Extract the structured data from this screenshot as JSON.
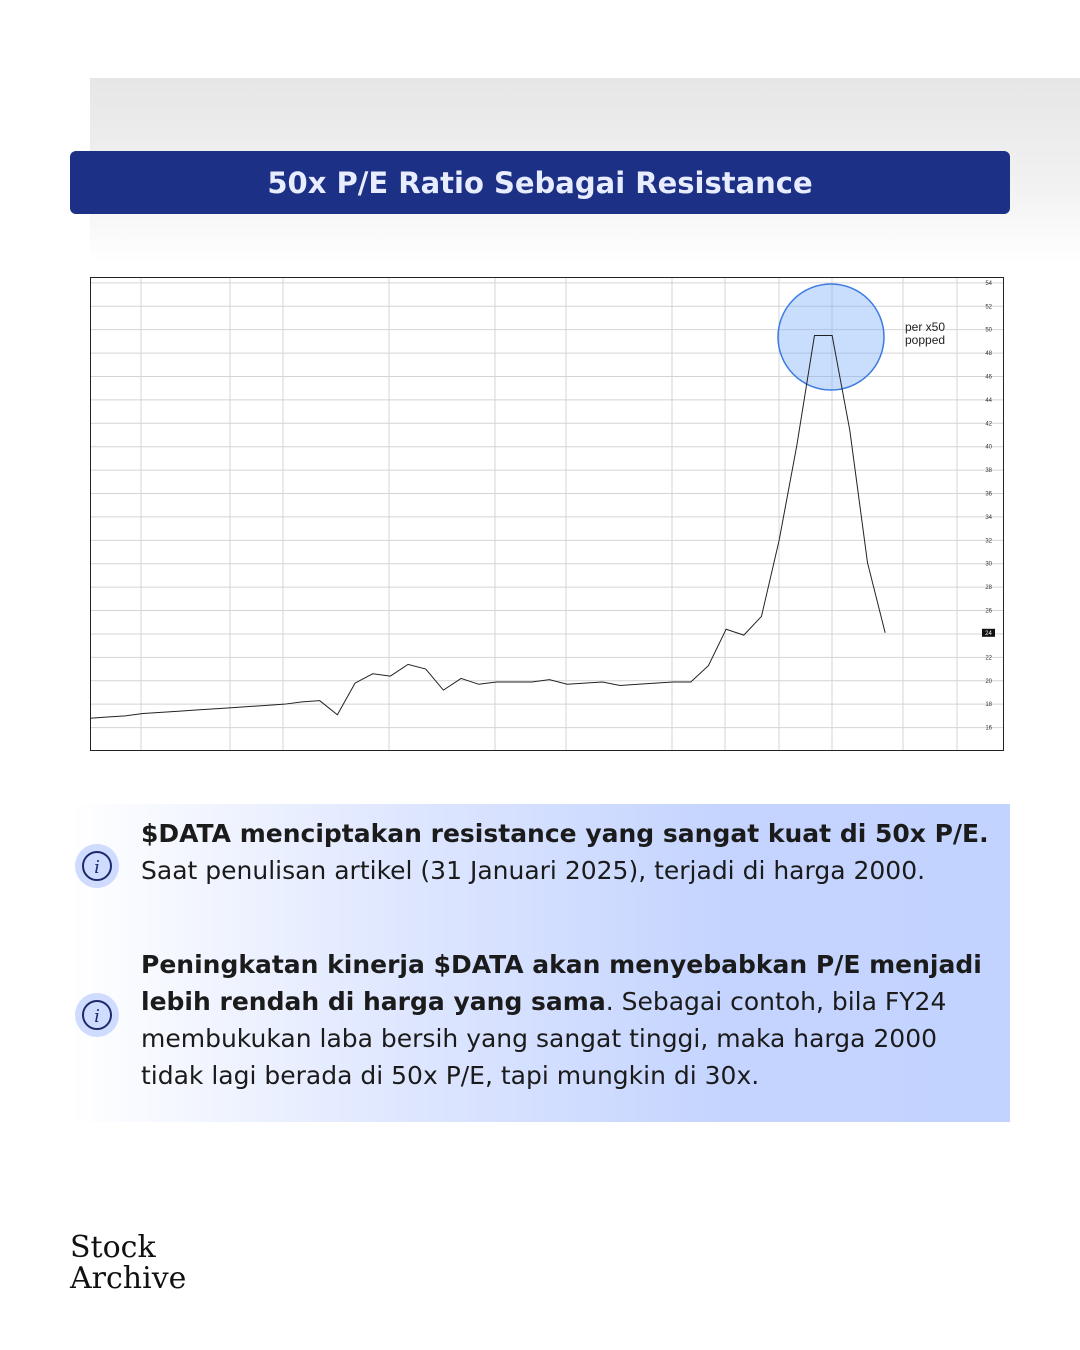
{
  "header": {
    "title": "50x P/E Ratio Sebagai Resistance"
  },
  "chart_data": {
    "type": "line",
    "values": [
      16.8,
      16.9,
      17.0,
      17.2,
      17.3,
      17.4,
      17.5,
      17.6,
      17.7,
      17.8,
      17.9,
      18.0,
      18.2,
      18.3,
      17.1,
      19.8,
      20.6,
      20.4,
      21.4,
      21.0,
      19.2,
      20.2,
      19.7,
      19.9,
      19.9,
      19.9,
      20.1,
      19.7,
      19.8,
      19.9,
      19.6,
      19.7,
      19.8,
      19.9,
      19.9,
      21.3,
      24.4,
      23.9,
      25.5,
      32.0,
      40.1,
      49.5,
      49.5,
      41.4,
      30.1,
      24.1
    ],
    "color": "#222222",
    "ylim": [
      14,
      54.5
    ],
    "yticks": [
      16,
      18,
      20,
      22,
      24,
      26,
      28,
      30,
      32,
      34,
      36,
      38,
      40,
      42,
      44,
      46,
      48,
      50,
      52,
      54
    ],
    "grid": true,
    "price_tag": {
      "value": 24.1,
      "label": "24"
    },
    "annotation": "per x50\npopped"
  },
  "notes": [
    {
      "bold": "$DATA menciptakan resistance yang sangat kuat di 50x P/E.",
      "text": "Saat penulisan artikel (31 Januari 2025), terjadi di harga 2000."
    },
    {
      "bold": "Peningkatan kinerja $DATA akan menyebabkan P/E menjadi lebih rendah di harga yang sama",
      "text": ". Sebagai contoh, bila FY24 membukukan laba bersih yang sangat tinggi, maka harga 2000 tidak lagi berada di 50x P/E, tapi mungkin di 30x."
    }
  ],
  "footer": {
    "brand_line1": "Stock",
    "brand_line2": "Archive"
  }
}
